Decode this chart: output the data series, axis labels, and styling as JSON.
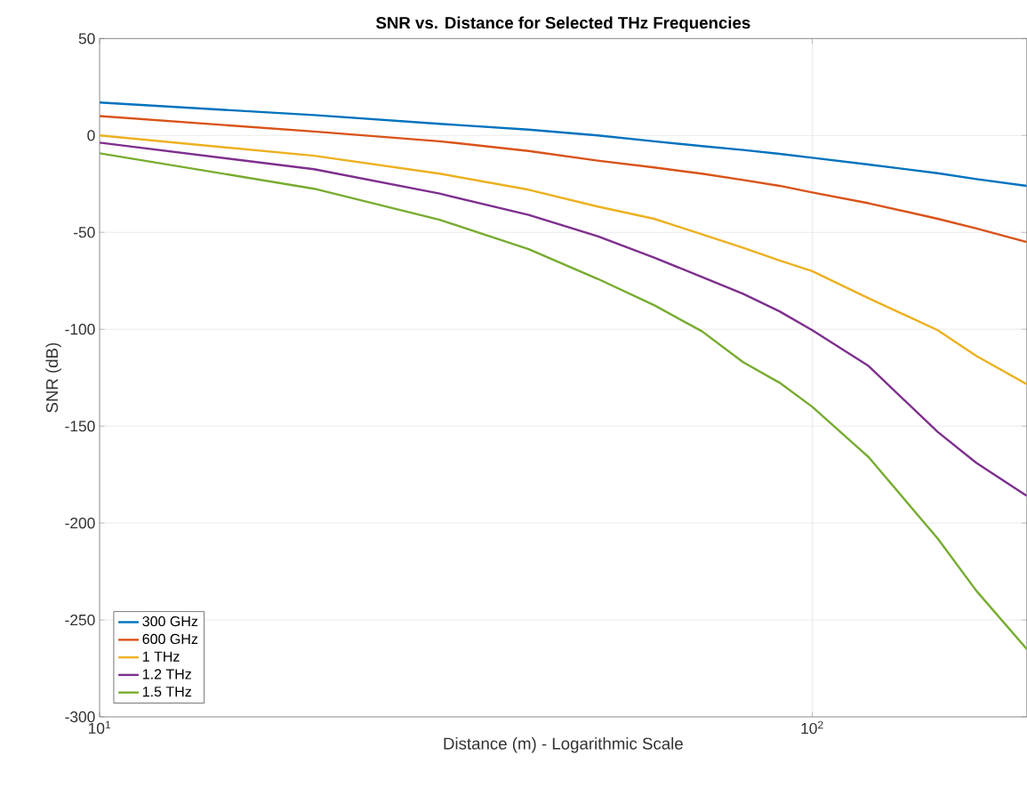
{
  "chart_data": {
    "type": "line",
    "title": "SNR vs. Distance for Selected THz Frequencies",
    "xlabel": "Distance (m) - Logarithmic Scale",
    "ylabel": "SNR (dB)",
    "log": "x",
    "grid": true,
    "legend": "bottom left",
    "xlim": [
      10,
      200
    ],
    "ylim": [
      -300,
      50
    ],
    "xticks": [
      {
        "value": 10,
        "label": "10$^{1}$"
      },
      {
        "value": 100,
        "label": "10$^{2}$"
      }
    ],
    "yticks": [
      -300,
      -250,
      -200,
      -150,
      -100,
      -50,
      0,
      50
    ],
    "x": [
      10,
      20,
      30,
      40,
      50,
      60,
      70,
      80,
      90,
      100,
      120,
      150,
      170,
      200
    ],
    "series": [
      {
        "name": "300 GHz",
        "color": "#0072bd",
        "values": [
          17,
          10.5,
          6,
          3,
          0,
          -3,
          -5.5,
          -7.5,
          -9.5,
          -11.5,
          -15,
          -19.5,
          -22.5,
          -26
        ]
      },
      {
        "name": "600 GHz",
        "color": "#d95319",
        "values": [
          10,
          2,
          -3,
          -8,
          -13,
          -16.5,
          -19.7,
          -23,
          -26,
          -29.4,
          -35,
          -43,
          -48,
          -55
        ]
      },
      {
        "name": "1 THz",
        "color": "#edb120",
        "values": [
          0,
          -10.5,
          -19.7,
          -28,
          -36.7,
          -43,
          -51,
          -58,
          -64.5,
          -70,
          -84,
          -100.5,
          -113.8,
          -128.4
        ]
      },
      {
        "name": "1.2 THz",
        "color": "#7e2f8e",
        "values": [
          -3.7,
          -17.4,
          -30,
          -41,
          -52,
          -63,
          -73,
          -81.7,
          -90.8,
          -100.5,
          -119,
          -153,
          -169,
          -186
        ]
      },
      {
        "name": "1.5 THz",
        "color": "#77ac30",
        "values": [
          -9.2,
          -27.5,
          -43.5,
          -58.7,
          -74,
          -87.6,
          -101,
          -117,
          -127.6,
          -140,
          -166,
          -208,
          -235,
          -265
        ]
      }
    ]
  }
}
